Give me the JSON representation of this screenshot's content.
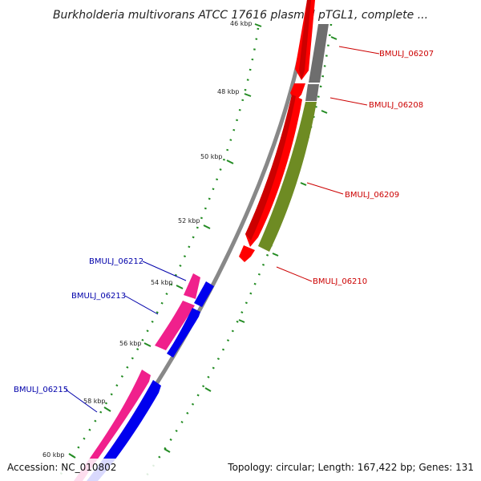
{
  "title": "Burkholderia multivorans ATCC 17616 plasmid pTGL1, complete ...",
  "accession": "Accession: NC_010802",
  "footer_info": "Topology: circular; Length: 167,422 bp; Genes: 131",
  "colors": {
    "backbone": "#888888",
    "tick": "#228B22",
    "label_forward": "#CC0000",
    "label_reverse": "#0000AA",
    "red": "#FF0000",
    "gray": "#6E6E6E",
    "olive": "#6E8B23",
    "pink": "#F0208C",
    "blue": "#0000EE"
  },
  "ticks": [
    {
      "text": "46 kbp"
    },
    {
      "text": "48 kbp"
    },
    {
      "text": "50 kbp"
    },
    {
      "text": "52 kbp"
    },
    {
      "text": "54 kbp"
    },
    {
      "text": "56 kbp"
    },
    {
      "text": "58 kbp"
    },
    {
      "text": "60 kbp"
    }
  ],
  "genes": [
    {
      "id": "BMULJ_06207",
      "strand": "forward"
    },
    {
      "id": "BMULJ_06208",
      "strand": "forward"
    },
    {
      "id": "BMULJ_06209",
      "strand": "forward"
    },
    {
      "id": "BMULJ_06210",
      "strand": "forward"
    },
    {
      "id": "BMULJ_06212",
      "strand": "reverse"
    },
    {
      "id": "BMULJ_06213",
      "strand": "reverse"
    },
    {
      "id": "BMULJ_06215",
      "strand": "reverse"
    }
  ]
}
